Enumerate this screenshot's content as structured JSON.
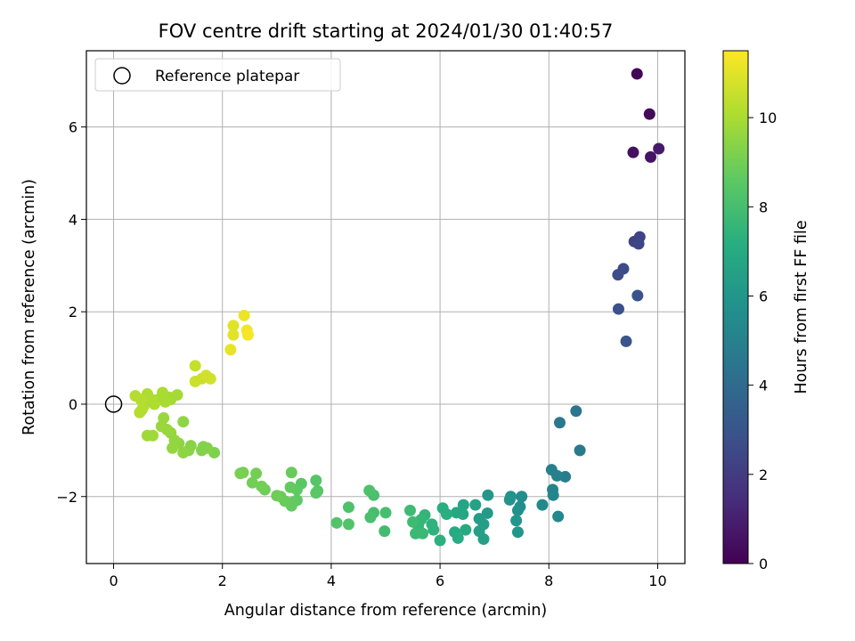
{
  "chart_data": {
    "type": "scatter",
    "title": "FOV centre drift starting at 2024/01/30 01:40:57",
    "xlabel": "Angular distance from reference (arcmin)",
    "ylabel": "Rotation from reference (arcmin)",
    "xlim": [
      -0.5,
      10.5
    ],
    "ylim": [
      -3.45,
      7.65
    ],
    "xticks": [
      "0",
      "2",
      "4",
      "6",
      "8",
      "10"
    ],
    "yticks": [
      "−2",
      "0",
      "2",
      "4",
      "6"
    ],
    "grid": true,
    "legend": {
      "position": "top-left",
      "entries": [
        "Reference platepar"
      ]
    },
    "reference_point": {
      "x": 0,
      "y": 0
    },
    "colorbar": {
      "label": "Hours from first FF file",
      "range": [
        0,
        11.5
      ],
      "ticks": [
        "0",
        "2",
        "4",
        "6",
        "8",
        "10"
      ],
      "colormap": "viridis"
    },
    "points": [
      {
        "x": 9.62,
        "y": 7.15,
        "c": 0.1
      },
      {
        "x": 9.85,
        "y": 6.28,
        "c": 0.3
      },
      {
        "x": 9.55,
        "y": 5.45,
        "c": 0.5
      },
      {
        "x": 9.87,
        "y": 5.35,
        "c": 0.6
      },
      {
        "x": 10.02,
        "y": 5.53,
        "c": 0.8
      },
      {
        "x": 9.57,
        "y": 3.52,
        "c": 2.2
      },
      {
        "x": 9.67,
        "y": 3.62,
        "c": 2.3
      },
      {
        "x": 9.65,
        "y": 3.47,
        "c": 2.4
      },
      {
        "x": 9.37,
        "y": 2.93,
        "c": 2.6
      },
      {
        "x": 9.27,
        "y": 2.8,
        "c": 2.7
      },
      {
        "x": 9.28,
        "y": 2.06,
        "c": 2.8
      },
      {
        "x": 9.63,
        "y": 2.35,
        "c": 2.9
      },
      {
        "x": 9.42,
        "y": 1.36,
        "c": 3.0
      },
      {
        "x": 8.5,
        "y": -0.15,
        "c": 4.5
      },
      {
        "x": 8.2,
        "y": -0.4,
        "c": 4.6
      },
      {
        "x": 8.57,
        "y": -1.0,
        "c": 4.7
      },
      {
        "x": 8.3,
        "y": -1.57,
        "c": 4.8
      },
      {
        "x": 8.05,
        "y": -1.42,
        "c": 4.9
      },
      {
        "x": 8.15,
        "y": -1.55,
        "c": 5.0
      },
      {
        "x": 8.07,
        "y": -1.85,
        "c": 5.1
      },
      {
        "x": 8.08,
        "y": -1.97,
        "c": 5.2
      },
      {
        "x": 8.17,
        "y": -2.43,
        "c": 5.3
      },
      {
        "x": 7.88,
        "y": -2.18,
        "c": 5.4
      },
      {
        "x": 7.5,
        "y": -2.0,
        "c": 5.5
      },
      {
        "x": 7.47,
        "y": -2.22,
        "c": 5.6
      },
      {
        "x": 7.43,
        "y": -2.3,
        "c": 5.7
      },
      {
        "x": 7.3,
        "y": -2.0,
        "c": 5.8
      },
      {
        "x": 7.28,
        "y": -2.07,
        "c": 5.9
      },
      {
        "x": 7.4,
        "y": -2.52,
        "c": 6.0
      },
      {
        "x": 7.43,
        "y": -2.77,
        "c": 6.0
      },
      {
        "x": 6.88,
        "y": -1.97,
        "c": 6.1
      },
      {
        "x": 6.87,
        "y": -2.36,
        "c": 6.2
      },
      {
        "x": 6.72,
        "y": -2.48,
        "c": 6.3
      },
      {
        "x": 6.8,
        "y": -2.6,
        "c": 6.4
      },
      {
        "x": 6.72,
        "y": -2.75,
        "c": 6.5
      },
      {
        "x": 6.8,
        "y": -2.92,
        "c": 6.5
      },
      {
        "x": 6.65,
        "y": -2.18,
        "c": 6.6
      },
      {
        "x": 6.43,
        "y": -2.18,
        "c": 6.7
      },
      {
        "x": 6.42,
        "y": -2.38,
        "c": 6.8
      },
      {
        "x": 6.3,
        "y": -2.35,
        "c": 6.9
      },
      {
        "x": 6.47,
        "y": -2.72,
        "c": 7.0
      },
      {
        "x": 6.27,
        "y": -2.77,
        "c": 7.0
      },
      {
        "x": 6.33,
        "y": -2.9,
        "c": 7.1
      },
      {
        "x": 6.05,
        "y": -2.25,
        "c": 7.2
      },
      {
        "x": 6.12,
        "y": -2.38,
        "c": 7.2
      },
      {
        "x": 6.0,
        "y": -2.95,
        "c": 7.3
      },
      {
        "x": 5.85,
        "y": -2.6,
        "c": 7.4
      },
      {
        "x": 5.88,
        "y": -2.72,
        "c": 7.4
      },
      {
        "x": 5.72,
        "y": -2.4,
        "c": 7.5
      },
      {
        "x": 5.65,
        "y": -2.5,
        "c": 7.6
      },
      {
        "x": 5.6,
        "y": -2.63,
        "c": 7.6
      },
      {
        "x": 5.55,
        "y": -2.8,
        "c": 7.7
      },
      {
        "x": 5.68,
        "y": -2.8,
        "c": 7.7
      },
      {
        "x": 5.5,
        "y": -2.55,
        "c": 7.8
      },
      {
        "x": 5.45,
        "y": -2.3,
        "c": 7.8
      },
      {
        "x": 4.98,
        "y": -2.75,
        "c": 7.9
      },
      {
        "x": 5.0,
        "y": -2.35,
        "c": 8.0
      },
      {
        "x": 4.78,
        "y": -2.35,
        "c": 8.0
      },
      {
        "x": 4.72,
        "y": -2.45,
        "c": 8.1
      },
      {
        "x": 4.78,
        "y": -1.97,
        "c": 8.1
      },
      {
        "x": 4.7,
        "y": -1.87,
        "c": 8.2
      },
      {
        "x": 4.32,
        "y": -2.23,
        "c": 8.2
      },
      {
        "x": 4.32,
        "y": -2.6,
        "c": 8.3
      },
      {
        "x": 4.1,
        "y": -2.57,
        "c": 8.3
      },
      {
        "x": 3.75,
        "y": -1.88,
        "c": 8.4
      },
      {
        "x": 3.72,
        "y": -1.65,
        "c": 8.4
      },
      {
        "x": 3.72,
        "y": -1.92,
        "c": 8.5
      },
      {
        "x": 3.45,
        "y": -1.72,
        "c": 8.5
      },
      {
        "x": 3.37,
        "y": -1.85,
        "c": 8.6
      },
      {
        "x": 3.37,
        "y": -2.08,
        "c": 8.6
      },
      {
        "x": 3.27,
        "y": -2.2,
        "c": 8.7
      },
      {
        "x": 3.3,
        "y": -2.12,
        "c": 8.7
      },
      {
        "x": 3.25,
        "y": -1.8,
        "c": 8.7
      },
      {
        "x": 3.27,
        "y": -1.48,
        "c": 8.8
      },
      {
        "x": 3.15,
        "y": -2.1,
        "c": 8.8
      },
      {
        "x": 3.07,
        "y": -2.0,
        "c": 8.8
      },
      {
        "x": 3.0,
        "y": -1.98,
        "c": 8.9
      },
      {
        "x": 2.78,
        "y": -1.85,
        "c": 8.9
      },
      {
        "x": 2.72,
        "y": -1.78,
        "c": 9.0
      },
      {
        "x": 2.62,
        "y": -1.5,
        "c": 9.0
      },
      {
        "x": 2.55,
        "y": -1.7,
        "c": 9.0
      },
      {
        "x": 2.38,
        "y": -1.48,
        "c": 9.1
      },
      {
        "x": 2.33,
        "y": -1.5,
        "c": 9.1
      },
      {
        "x": 1.85,
        "y": -1.05,
        "c": 9.2
      },
      {
        "x": 1.72,
        "y": -0.95,
        "c": 9.3
      },
      {
        "x": 1.65,
        "y": -0.92,
        "c": 9.3
      },
      {
        "x": 1.62,
        "y": -1.0,
        "c": 9.3
      },
      {
        "x": 1.42,
        "y": -0.9,
        "c": 9.4
      },
      {
        "x": 1.38,
        "y": -1.0,
        "c": 9.4
      },
      {
        "x": 1.28,
        "y": -0.38,
        "c": 9.5
      },
      {
        "x": 1.28,
        "y": -1.05,
        "c": 9.5
      },
      {
        "x": 1.2,
        "y": -0.85,
        "c": 9.5
      },
      {
        "x": 1.12,
        "y": -0.78,
        "c": 9.6
      },
      {
        "x": 1.05,
        "y": -0.62,
        "c": 9.6
      },
      {
        "x": 1.08,
        "y": -0.95,
        "c": 9.6
      },
      {
        "x": 0.98,
        "y": -0.55,
        "c": 9.7
      },
      {
        "x": 0.92,
        "y": -0.3,
        "c": 9.7
      },
      {
        "x": 0.88,
        "y": -0.48,
        "c": 9.7
      },
      {
        "x": 0.72,
        "y": -0.68,
        "c": 9.8
      },
      {
        "x": 0.62,
        "y": -0.68,
        "c": 9.8
      },
      {
        "x": 1.17,
        "y": 0.2,
        "c": 9.9
      },
      {
        "x": 1.05,
        "y": 0.1,
        "c": 9.9
      },
      {
        "x": 1.02,
        "y": 0.15,
        "c": 9.9
      },
      {
        "x": 0.95,
        "y": 0.05,
        "c": 10.0
      },
      {
        "x": 0.9,
        "y": 0.25,
        "c": 10.0
      },
      {
        "x": 0.82,
        "y": 0.1,
        "c": 10.0
      },
      {
        "x": 0.75,
        "y": 0.0,
        "c": 10.1
      },
      {
        "x": 0.7,
        "y": 0.1,
        "c": 10.1
      },
      {
        "x": 0.62,
        "y": 0.22,
        "c": 10.1
      },
      {
        "x": 0.55,
        "y": -0.05,
        "c": 10.1
      },
      {
        "x": 0.52,
        "y": -0.12,
        "c": 10.2
      },
      {
        "x": 0.48,
        "y": -0.18,
        "c": 10.2
      },
      {
        "x": 0.5,
        "y": 0.1,
        "c": 10.2
      },
      {
        "x": 0.4,
        "y": 0.18,
        "c": 10.2
      },
      {
        "x": 1.5,
        "y": 0.83,
        "c": 10.5
      },
      {
        "x": 1.5,
        "y": 0.49,
        "c": 10.6
      },
      {
        "x": 1.62,
        "y": 0.55,
        "c": 10.6
      },
      {
        "x": 1.7,
        "y": 0.62,
        "c": 10.7
      },
      {
        "x": 1.78,
        "y": 0.55,
        "c": 10.7
      },
      {
        "x": 2.2,
        "y": 1.7,
        "c": 11.0
      },
      {
        "x": 2.2,
        "y": 1.5,
        "c": 11.0
      },
      {
        "x": 2.15,
        "y": 1.18,
        "c": 11.1
      },
      {
        "x": 2.4,
        "y": 1.92,
        "c": 11.2
      },
      {
        "x": 2.45,
        "y": 1.6,
        "c": 11.3
      },
      {
        "x": 2.47,
        "y": 1.5,
        "c": 11.4
      }
    ]
  }
}
